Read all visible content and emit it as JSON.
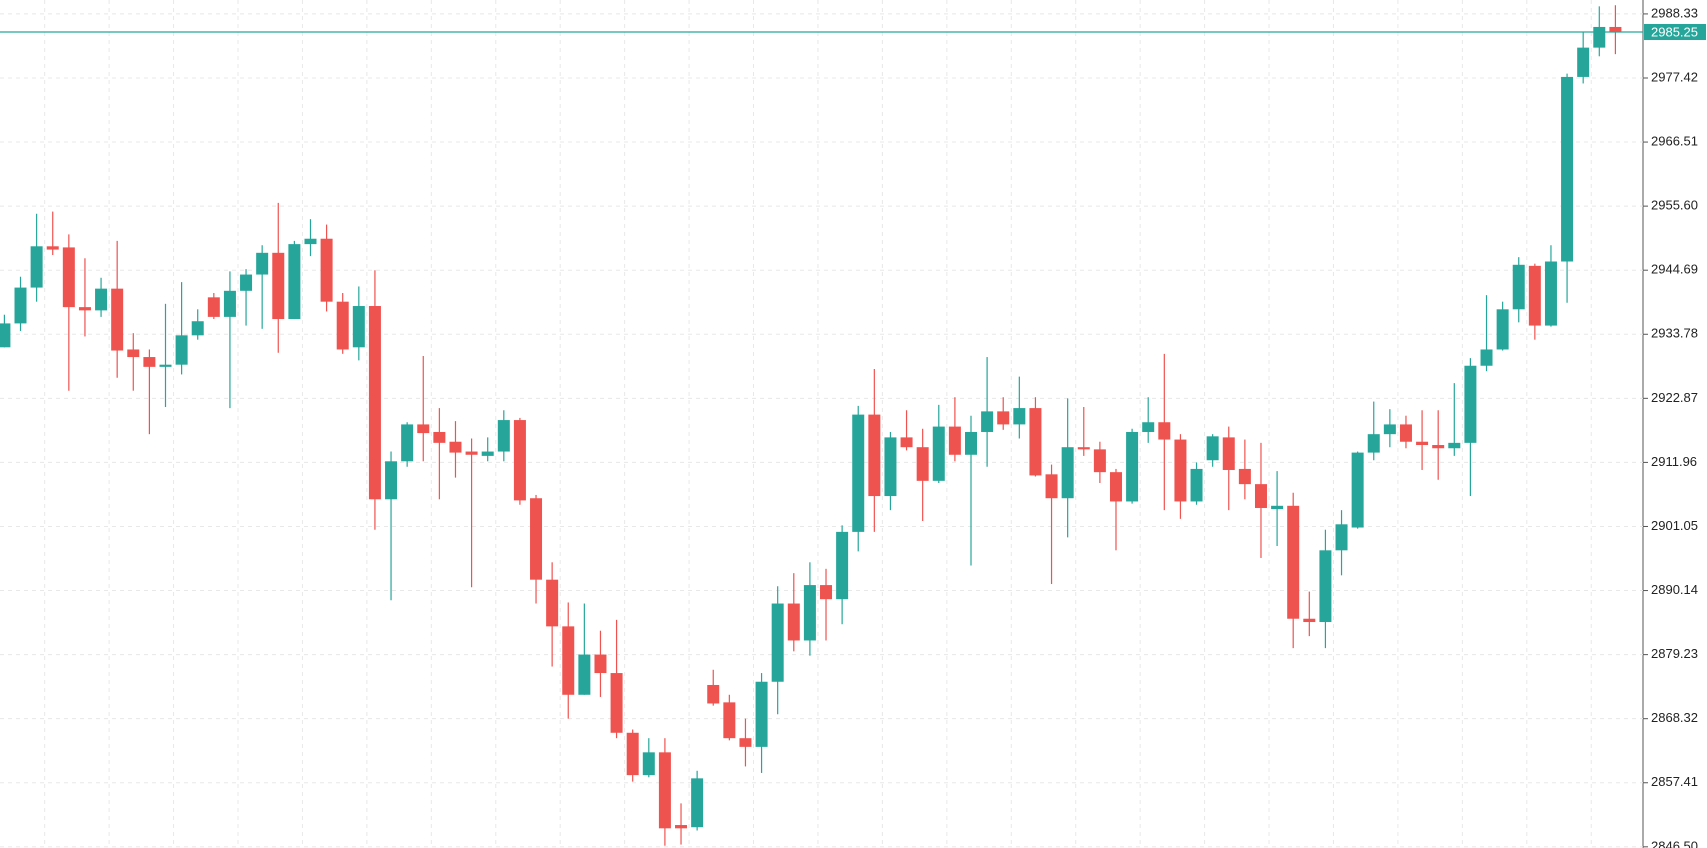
{
  "chart_data": {
    "type": "candlestick",
    "up_color": "#26a69a",
    "down_color": "#ef5350",
    "open": [
      2931.56,
      2935.63,
      2941.73,
      2948.76,
      2948.57,
      2938.4,
      2937.85,
      2941.55,
      2931.19,
      2929.9,
      2928.23,
      2928.6,
      2933.6,
      2940.07,
      2936.74,
      2941.18,
      2943.95,
      2947.65,
      2936.37,
      2949.13,
      2950.05,
      2939.33,
      2931.56,
      2938.59,
      2905.68,
      2912.15,
      2918.43,
      2917.14,
      2915.48,
      2913.81,
      2913.07,
      2913.81,
      2919.17,
      2905.86,
      2891.99,
      2884.04,
      2872.39,
      2879.24,
      2876.09,
      2865.92,
      2858.71,
      2862.59,
      2850.21,
      2849.84,
      2874.06,
      2871.1,
      2865.0,
      2863.52,
      2874.61,
      2887.93,
      2881.64,
      2891.07,
      2888.67,
      2900.13,
      2920.1,
      2906.23,
      2916.22,
      2914.55,
      2908.82,
      2918.06,
      2913.26,
      2917.14,
      2920.65,
      2918.43,
      2921.21,
      2909.93,
      2905.86,
      2914.55,
      2914.18,
      2910.3,
      2905.31,
      2917.14,
      2918.8,
      2915.85,
      2905.31,
      2912.33,
      2916.22,
      2910.85,
      2908.26,
      2904.01,
      2904.57,
      2885.34,
      2884.78,
      2896.99,
      2900.87,
      2913.63,
      2916.77,
      2918.43,
      2915.48,
      2914.92,
      2914.37,
      2915.29,
      2928.42,
      2931.19,
      2938.03,
      2945.43,
      2935.26,
      2946.17,
      2977.6,
      2982.59,
      2986.11
    ],
    "high": [
      2937.11,
      2943.58,
      2954.3,
      2954.67,
      2950.79,
      2946.72,
      2943.4,
      2949.68,
      2933.97,
      2931.19,
      2938.96,
      2942.66,
      2938.03,
      2940.81,
      2944.5,
      2944.87,
      2948.94,
      2956.15,
      2949.68,
      2953.38,
      2952.46,
      2940.81,
      2941.92,
      2944.69,
      2913.81,
      2918.8,
      2930.08,
      2921.21,
      2918.99,
      2916.03,
      2916.22,
      2920.84,
      2919.54,
      2906.42,
      2894.95,
      2888.11,
      2887.93,
      2883.3,
      2885.15,
      2866.48,
      2865.0,
      2865.0,
      2853.9,
      2859.45,
      2876.65,
      2872.39,
      2868.33,
      2876.09,
      2890.88,
      2893.1,
      2894.95,
      2893.84,
      2901.24,
      2921.58,
      2927.86,
      2917.14,
      2920.84,
      2917.69,
      2921.76,
      2923.06,
      2919.91,
      2929.9,
      2923.06,
      2926.57,
      2923.06,
      2911.59,
      2922.87,
      2921.39,
      2915.48,
      2910.85,
      2917.69,
      2923.06,
      2930.45,
      2916.77,
      2911.96,
      2916.77,
      2918.06,
      2915.85,
      2915.29,
      2910.48,
      2906.79,
      2889.96,
      2900.5,
      2903.83,
      2913.81,
      2922.32,
      2921.02,
      2919.91,
      2920.84,
      2920.84,
      2925.46,
      2929.71,
      2940.44,
      2939.33,
      2946.91,
      2945.8,
      2948.94,
      2978.16,
      2985.18,
      2989.62,
      2989.81
    ],
    "low": [
      2931.56,
      2934.34,
      2939.33,
      2947.28,
      2924.17,
      2933.41,
      2936.74,
      2926.38,
      2924.17,
      2916.77,
      2921.39,
      2926.94,
      2932.86,
      2936.37,
      2921.21,
      2935.26,
      2934.71,
      2930.64,
      2936.37,
      2947.09,
      2937.66,
      2930.45,
      2929.34,
      2900.5,
      2888.48,
      2911.22,
      2912.15,
      2905.68,
      2909.37,
      2890.7,
      2912.15,
      2912.15,
      2904.75,
      2887.93,
      2877.2,
      2868.33,
      2872.39,
      2872.02,
      2865.0,
      2857.6,
      2858.34,
      2846.69,
      2846.88,
      2849.28,
      2870.54,
      2864.63,
      2860.19,
      2859.08,
      2869.07,
      2879.79,
      2879.05,
      2881.64,
      2884.41,
      2896.8,
      2900.13,
      2903.83,
      2914.0,
      2901.98,
      2908.45,
      2912.15,
      2894.4,
      2911.22,
      2917.51,
      2916.03,
      2909.56,
      2891.25,
      2899.2,
      2913.07,
      2908.45,
      2896.99,
      2904.94,
      2915.29,
      2903.83,
      2902.35,
      2904.75,
      2911.22,
      2903.83,
      2905.68,
      2895.69,
      2897.73,
      2880.34,
      2882.38,
      2880.34,
      2892.73,
      2900.68,
      2912.33,
      2914.55,
      2914.37,
      2910.67,
      2909.0,
      2913.07,
      2906.23,
      2927.49,
      2931.01,
      2935.81,
      2932.86,
      2935.08,
      2939.14,
      2976.49,
      2981.12,
      2981.48
    ],
    "close": [
      2935.63,
      2941.73,
      2948.76,
      2948.2,
      2938.4,
      2937.85,
      2941.55,
      2931.01,
      2929.9,
      2928.23,
      2928.6,
      2933.6,
      2936.0,
      2936.74,
      2941.18,
      2943.95,
      2947.65,
      2936.37,
      2949.13,
      2950.05,
      2939.33,
      2931.19,
      2938.59,
      2905.68,
      2912.15,
      2918.43,
      2916.95,
      2915.29,
      2913.63,
      2913.26,
      2913.81,
      2919.17,
      2905.49,
      2891.99,
      2884.04,
      2872.39,
      2879.24,
      2876.09,
      2865.92,
      2858.71,
      2862.59,
      2849.65,
      2849.65,
      2858.16,
      2870.91,
      2865.0,
      2863.52,
      2874.61,
      2887.93,
      2881.64,
      2891.07,
      2888.67,
      2900.13,
      2920.1,
      2906.23,
      2916.22,
      2914.55,
      2908.82,
      2918.06,
      2913.26,
      2917.14,
      2920.65,
      2918.43,
      2921.21,
      2909.74,
      2905.86,
      2914.55,
      2914.18,
      2910.3,
      2905.31,
      2917.14,
      2918.8,
      2915.85,
      2905.31,
      2910.85,
      2916.4,
      2910.67,
      2908.26,
      2904.2,
      2904.57,
      2885.34,
      2884.78,
      2896.99,
      2901.42,
      2913.63,
      2916.77,
      2918.43,
      2915.48,
      2914.92,
      2914.37,
      2915.29,
      2928.42,
      2931.19,
      2938.03,
      2945.61,
      2935.26,
      2946.17,
      2977.6,
      2982.59,
      2986.11,
      2985.25
    ],
    "last_price": 2985.25,
    "ylim": [
      2846.3,
      2990.7
    ],
    "yticks": [
      2988.33,
      2977.42,
      2966.51,
      {
        "value": 2955.6,
        "label": "2955.60"
      },
      2944.69,
      2933.78,
      2922.87,
      2911.96,
      2901.05,
      2890.14,
      2879.23,
      2868.32,
      2857.41,
      {
        "value": 2846.5,
        "label": "2846.50"
      }
    ],
    "grid": true
  }
}
